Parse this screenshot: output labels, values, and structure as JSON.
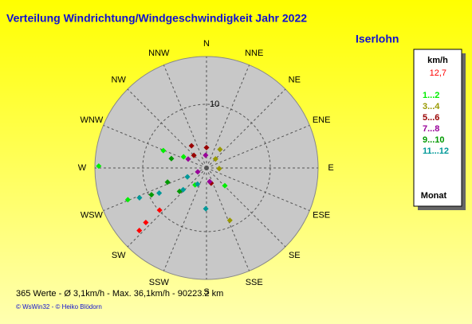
{
  "chart_data": {
    "type": "polar-scatter",
    "title": "Verteilung Windrichtung/Windgeschwindigkeit  Jahr 2022",
    "subtitle": "Iserlohn",
    "directions": [
      "N",
      "NNE",
      "NE",
      "ENE",
      "E",
      "ESE",
      "SE",
      "SSE",
      "S",
      "SSW",
      "SW",
      "WSW",
      "W",
      "WNW",
      "NW",
      "NNW"
    ],
    "rlim": [
      0,
      17.5
    ],
    "rticks": [
      10
    ],
    "legend_title": "km/h",
    "legend_footer": "Monat",
    "series": [
      {
        "name": "12,7",
        "color": "#ff0000",
        "x": [
          227,
          228,
          228
        ],
        "values": [
          14.4,
          12.8,
          9.9
        ]
      },
      {
        "name": "1...2",
        "color": "#00ee00",
        "x": [
          292,
          296,
          248,
          271,
          214,
          134
        ],
        "values": [
          7.3,
          4.0,
          13.3,
          16.9,
          3.2,
          4.0
        ]
      },
      {
        "name": "3...4",
        "color": "#999900",
        "x": [
          156,
          45,
          36,
          93
        ],
        "values": [
          9.0,
          2.0,
          3.6,
          2.0
        ]
      },
      {
        "name": "5...6",
        "color": "#990000",
        "x": [
          315,
          0,
          163,
          326
        ],
        "values": [
          2.8,
          3.2,
          2.5,
          4.2
        ]
      },
      {
        "name": "7...8",
        "color": "#990099",
        "x": [
          296,
          356,
          167,
          246
        ],
        "values": [
          3.2,
          2.0,
          2.2,
          1.5
        ]
      },
      {
        "name": "9...10",
        "color": "#009900",
        "x": [
          250,
          244,
          285,
          229
        ],
        "values": [
          6.5,
          9.6,
          5.7,
          5.6
        ]
      },
      {
        "name": "11...12",
        "color": "#009999",
        "x": [
          181,
          227,
          242,
          246,
          209,
          245
        ],
        "values": [
          6.4,
          5.0,
          8.4,
          11.5,
          2.9,
          3.3
        ]
      }
    ],
    "footer": "365 Werte   -   Ø 3,1km/h   -  Max. 36,1km/h   -   90223.2 km",
    "credits": "© WsWin32  -  © Heiko Blödorn"
  }
}
